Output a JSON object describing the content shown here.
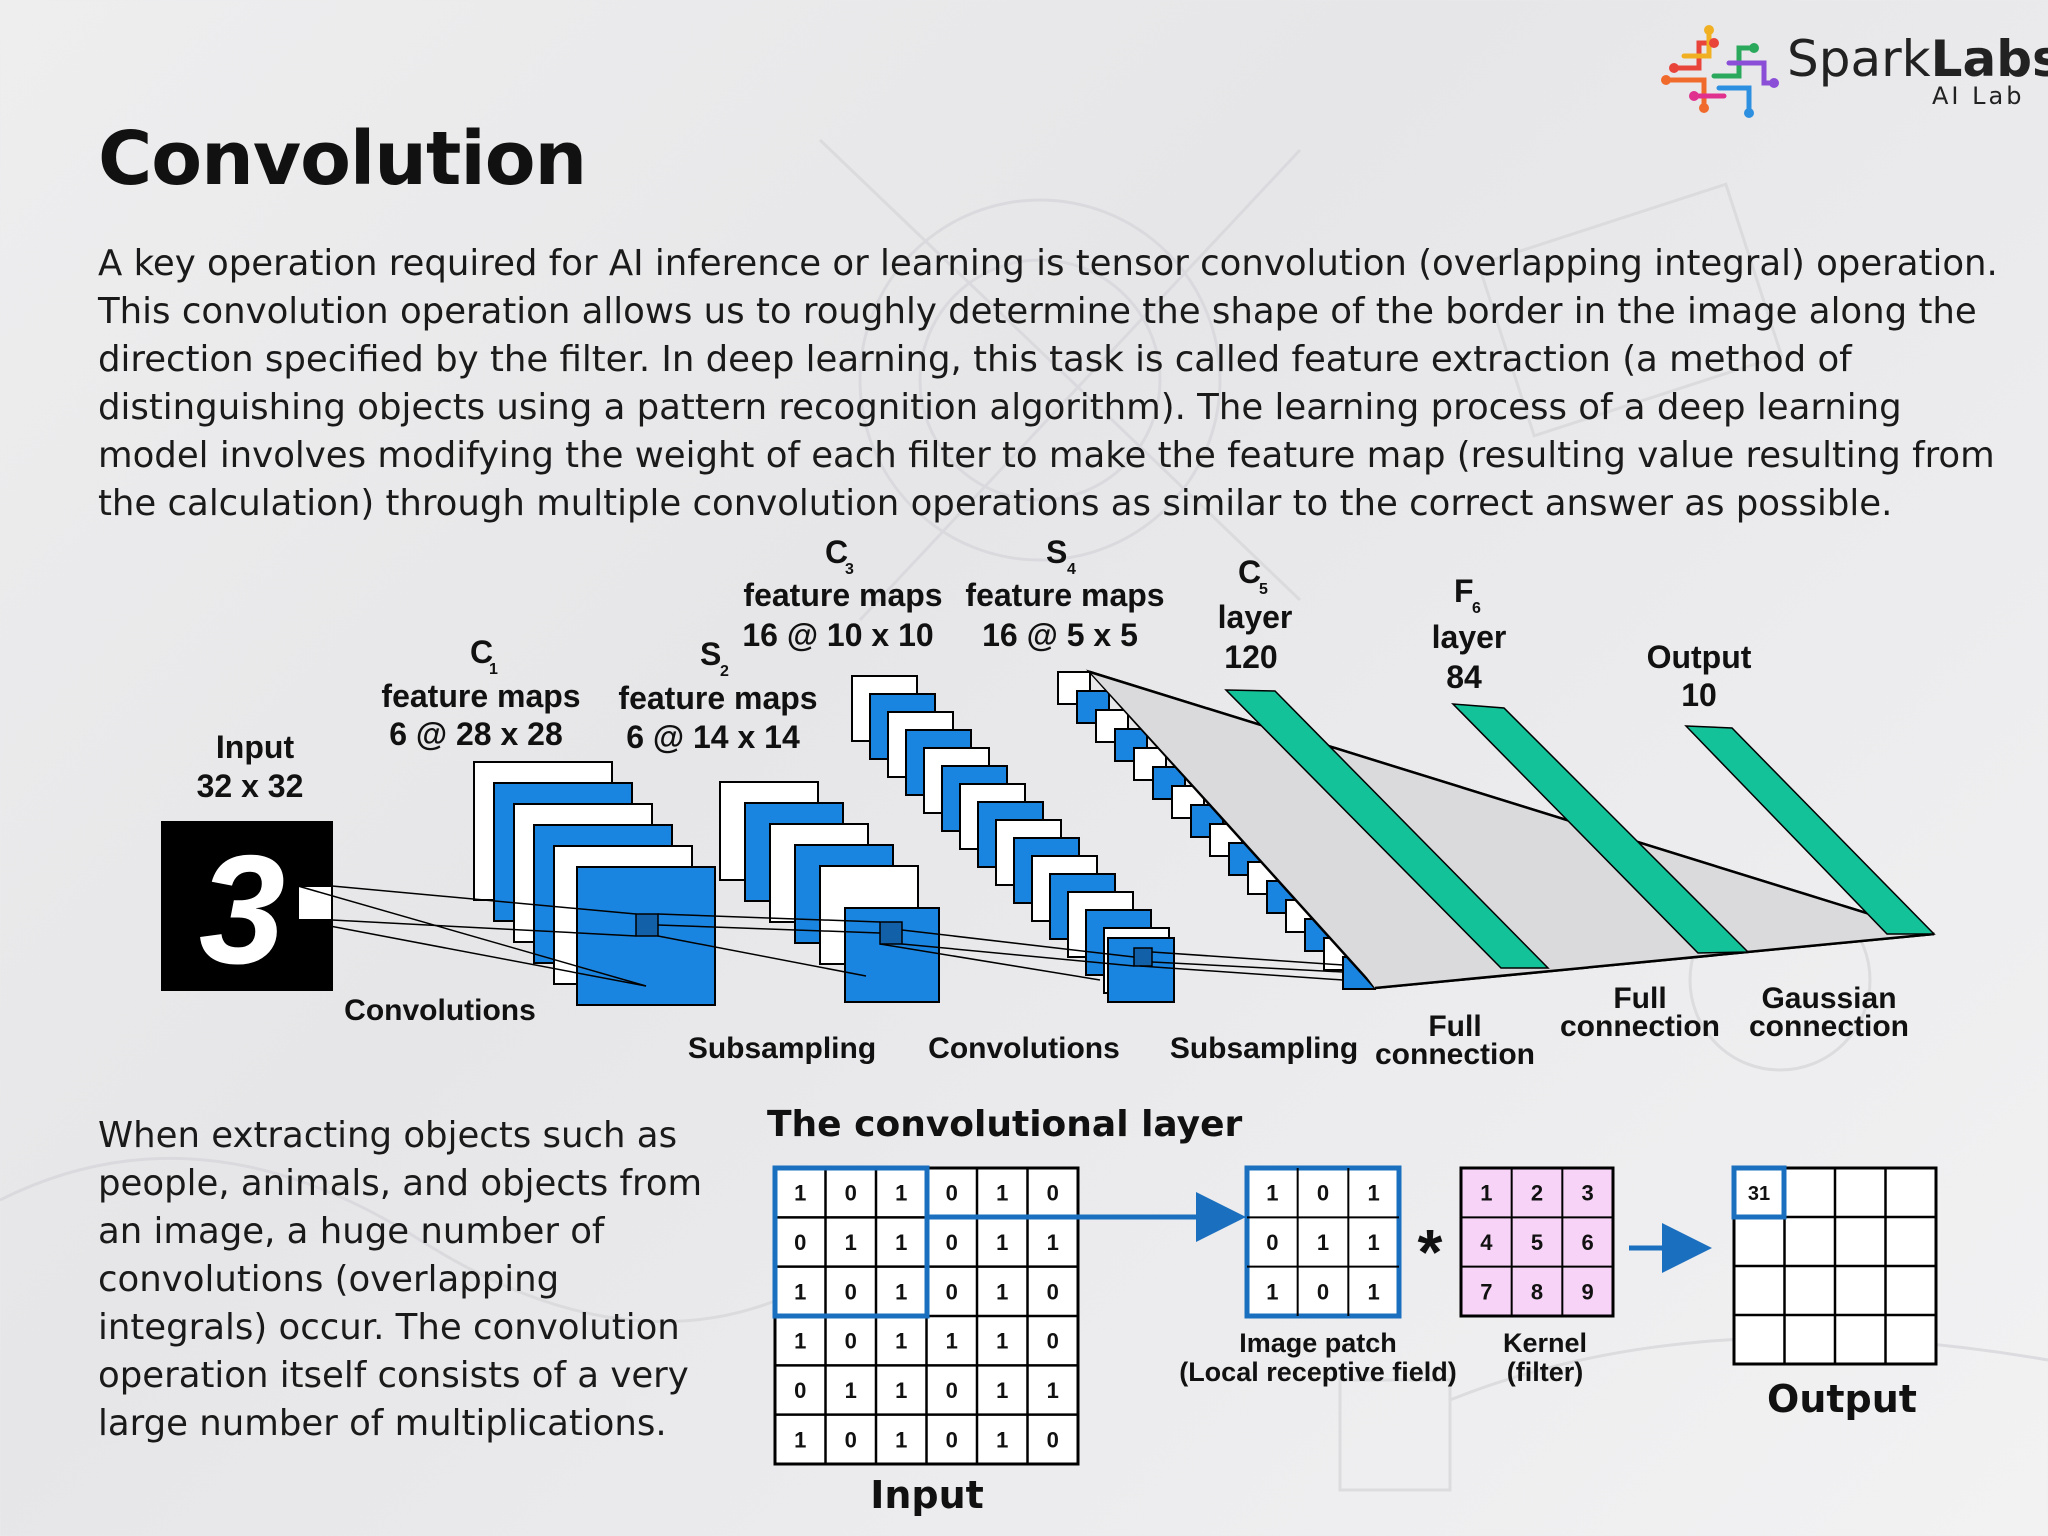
{
  "brand": {
    "name_light": "Spark",
    "name_bold": "Labs",
    "subtitle": "AI Lab"
  },
  "title": "Convolution",
  "paragraph_main": "A key operation required for AI inference or learning is tensor convolution (overlapping integral) operation. This convolution operation allows us to roughly determine the shape of the border in the image along the direction specified by the filter. In deep learning, this task is called feature extraction (a method of distinguishing objects using a pattern recognition algorithm). The learning process of a deep learning model involves modifying the weight of each filter to make the feature map (resulting value resulting from the calculation) through multiple convolution operations as similar to the correct answer as possible.",
  "paragraph_side": "When extracting objects such as people, animals, and objects from an image, a huge number of convolutions (overlapping integrals) occur. The convolution operation itself consists of a very large number of multiplications.",
  "lenet": {
    "input": {
      "line1": "Input",
      "line2": "32 x 32",
      "digit": "3"
    },
    "c1": {
      "name": "C",
      "sub": "1",
      "line2": "feature maps",
      "line3": "6 @ 28 x 28"
    },
    "s2": {
      "name": "S",
      "sub": "2",
      "line2": "feature maps",
      "line3": "6 @ 14 x 14"
    },
    "c3": {
      "name": "C",
      "sub": "3",
      "line2": "feature maps",
      "line3": "16 @ 10 x 10"
    },
    "s4": {
      "name": "S",
      "sub": "4",
      "line2": "feature maps",
      "line3": "16 @ 5 x 5"
    },
    "c5": {
      "name": "C",
      "sub": "5",
      "line2": "layer",
      "line3": "120"
    },
    "f6": {
      "name": "F",
      "sub": "6",
      "line2": "layer",
      "line3": "84"
    },
    "output": {
      "line1": "Output",
      "line2": "10"
    },
    "ops": {
      "conv1": "Convolutions",
      "sub1": "Subsampling",
      "conv2": "Convolutions",
      "sub2": "Subsampling",
      "full1_a": "Full",
      "full1_b": "connection",
      "full2_a": "Full",
      "full2_b": "connection",
      "gauss_a": "Gaussian",
      "gauss_b": "connection"
    },
    "colors": {
      "map_blue": "#1a85e0",
      "layer_teal": "#14c29a"
    }
  },
  "conv_layer": {
    "title": "The convolutional layer",
    "input_label": "Input",
    "input_grid": [
      [
        "1",
        "0",
        "1",
        "0",
        "1",
        "0"
      ],
      [
        "0",
        "1",
        "1",
        "0",
        "1",
        "1"
      ],
      [
        "1",
        "0",
        "1",
        "0",
        "1",
        "0"
      ],
      [
        "1",
        "0",
        "1",
        "1",
        "1",
        "0"
      ],
      [
        "0",
        "1",
        "1",
        "0",
        "1",
        "1"
      ],
      [
        "1",
        "0",
        "1",
        "0",
        "1",
        "0"
      ]
    ],
    "patch_grid": [
      [
        "1",
        "0",
        "1"
      ],
      [
        "0",
        "1",
        "1"
      ],
      [
        "1",
        "0",
        "1"
      ]
    ],
    "patch_label_1": "Image patch",
    "patch_label_2": "(Local receptive field)",
    "operator": "*",
    "kernel_grid": [
      [
        "1",
        "2",
        "3"
      ],
      [
        "4",
        "5",
        "6"
      ],
      [
        "7",
        "8",
        "9"
      ]
    ],
    "kernel_label_1": "Kernel",
    "kernel_label_2": "(filter)",
    "output_first_value": "31",
    "output_label": "Output",
    "colors": {
      "highlight_blue": "#1a6fbf",
      "kernel_pink": "#f7d4f7"
    }
  }
}
